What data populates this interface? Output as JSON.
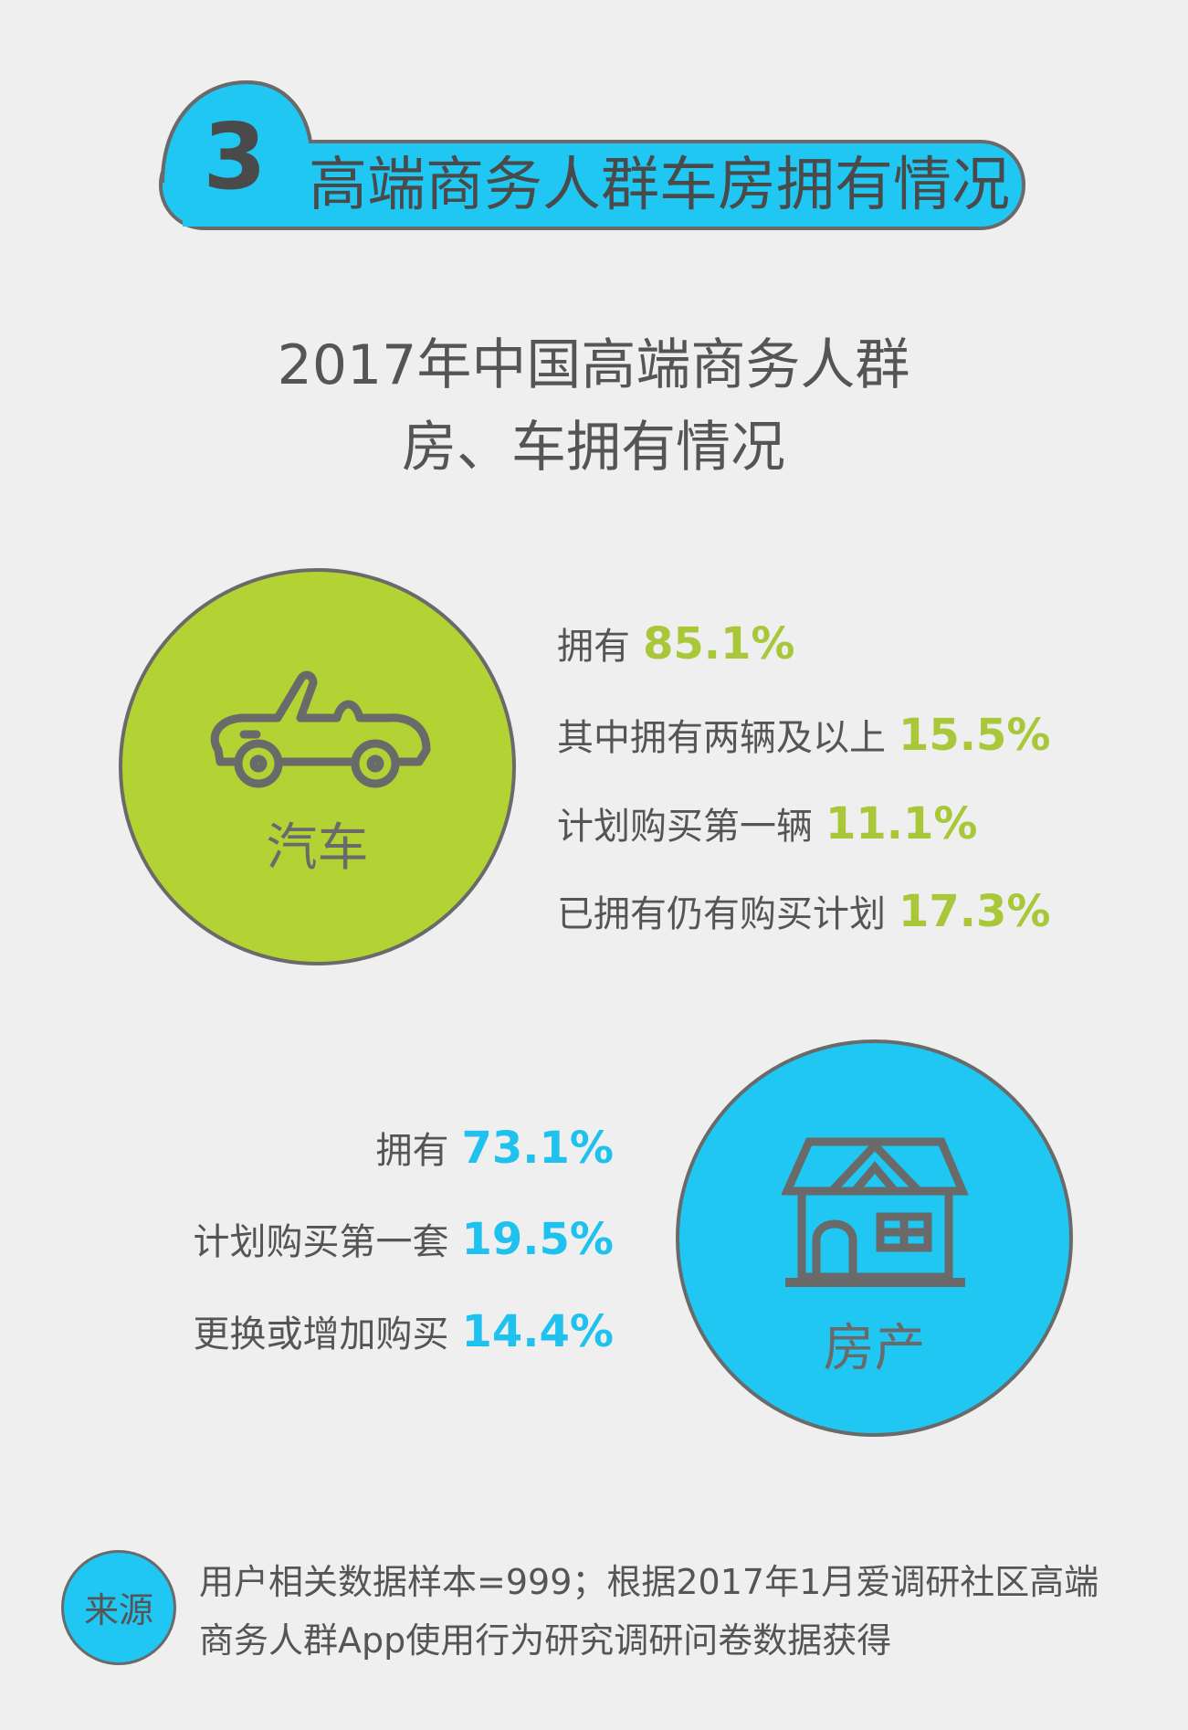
{
  "section": {
    "number": "3",
    "title": "高端商务人群车房拥有情况"
  },
  "main_title": {
    "line1": "2017年中国高端商务人群",
    "line2": "房、车拥有情况"
  },
  "car": {
    "label": "汽车",
    "icon": "car-icon",
    "color": "#b3d233",
    "stats": [
      {
        "label": "拥有",
        "value": "85.1%"
      },
      {
        "label": "其中拥有两辆及以上",
        "value": "15.5%"
      },
      {
        "label": "计划购买第一辆",
        "value": "11.1%"
      },
      {
        "label": "已拥有仍有购买计划",
        "value": "17.3%"
      }
    ]
  },
  "house": {
    "label": "房产",
    "icon": "house-icon",
    "color": "#1fc7f2",
    "stats": [
      {
        "label": "拥有",
        "value": "73.1%"
      },
      {
        "label": "计划购买第一套",
        "value": "19.5%"
      },
      {
        "label": "更换或增加购买",
        "value": "14.4%"
      }
    ]
  },
  "source": {
    "label": "来源",
    "line1": "用户相关数据样本=999；根据2017年1月爱调研社区高端",
    "line2": "商务人群App使用行为研究调研问卷数据获得"
  }
}
